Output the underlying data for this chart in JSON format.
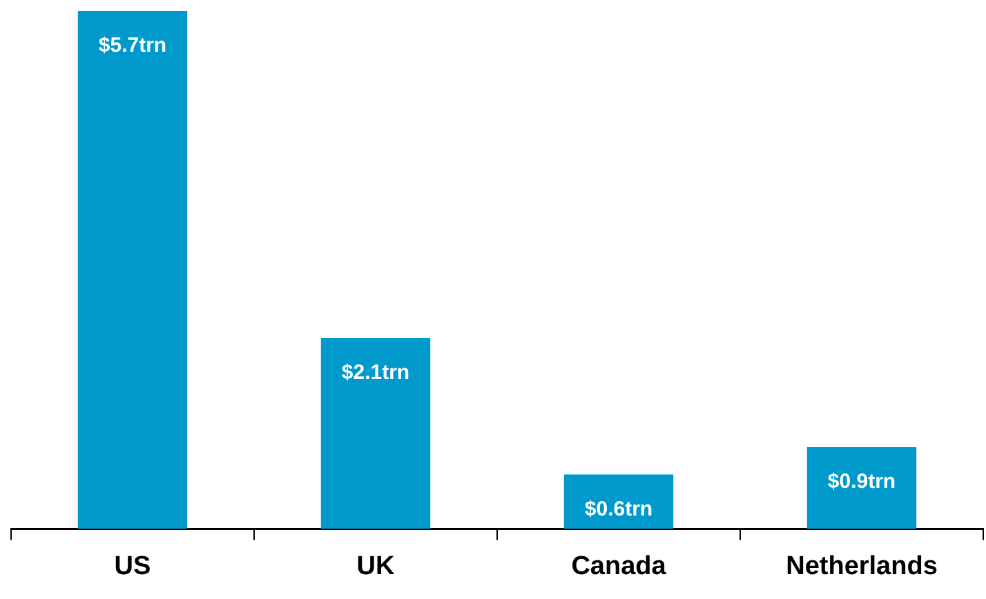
{
  "chart_data": {
    "type": "bar",
    "categories": [
      "US",
      "UK",
      "Canada",
      "Netherlands"
    ],
    "values": [
      5.7,
      2.1,
      0.6,
      0.9
    ],
    "value_labels": [
      "$5.7trn",
      "$2.1trn",
      "$0.6trn",
      "$0.9trn"
    ],
    "color": "#0099cc"
  }
}
